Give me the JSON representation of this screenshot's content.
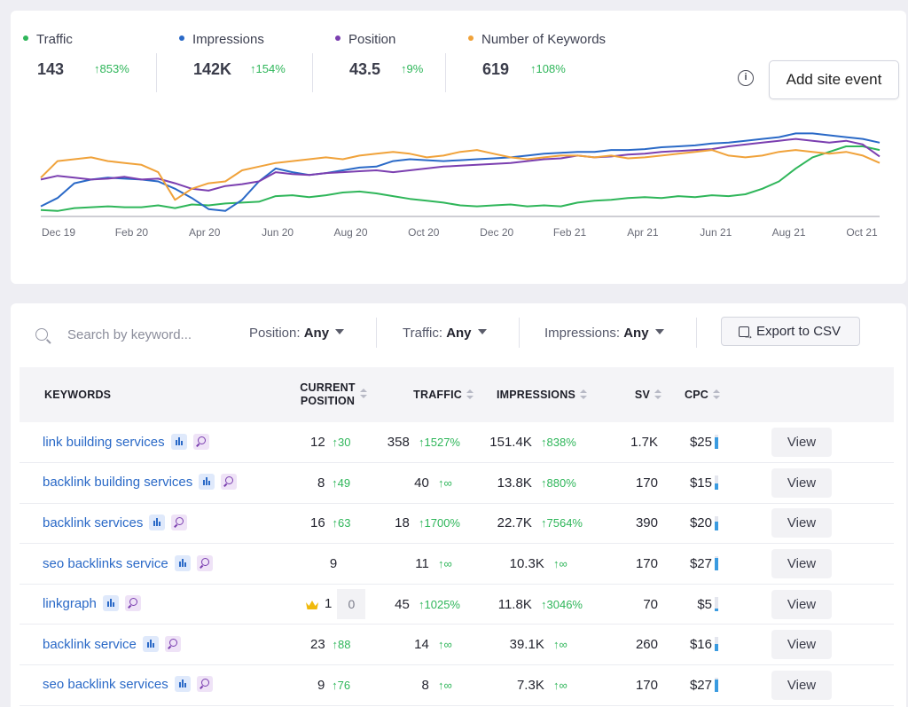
{
  "metrics": [
    {
      "label": "Traffic",
      "value": "143",
      "change": "853%",
      "color": "#2fb65a"
    },
    {
      "label": "Impressions",
      "value": "142K",
      "change": "154%",
      "color": "#2a69c7"
    },
    {
      "label": "Position",
      "value": "43.5",
      "change": "9%",
      "color": "#7b3fb0"
    },
    {
      "label": "Number of Keywords",
      "value": "619",
      "change": "108%",
      "color": "#f0a23a"
    }
  ],
  "info_icon": "info-icon",
  "add_site_event_label": "Add site event",
  "chart_data": {
    "type": "line",
    "x_tick_labels": [
      "Dec 19",
      "Feb 20",
      "Apr 20",
      "Jun 20",
      "Aug 20",
      "Oct 20",
      "Dec 20",
      "Feb 21",
      "Apr 21",
      "Jun 21",
      "Aug 21",
      "Oct 21"
    ],
    "series": [
      {
        "name": "Traffic",
        "color": "#2fb65a",
        "values": [
          7,
          6,
          9,
          10,
          11,
          10,
          10,
          12,
          9,
          13,
          12,
          14,
          15,
          16,
          22,
          23,
          21,
          23,
          26,
          27,
          25,
          22,
          19,
          17,
          15,
          12,
          11,
          12,
          13,
          11,
          12,
          11,
          15,
          17,
          18,
          20,
          21,
          20,
          22,
          21,
          23,
          22,
          24,
          30,
          38,
          52,
          64,
          70,
          76,
          76,
          72
        ]
      },
      {
        "name": "Impressions",
        "color": "#2a69c7",
        "values": [
          11,
          20,
          36,
          40,
          42,
          41,
          40,
          38,
          30,
          20,
          8,
          6,
          18,
          38,
          52,
          48,
          45,
          47,
          50,
          53,
          54,
          60,
          62,
          61,
          60,
          61,
          62,
          63,
          64,
          66,
          68,
          69,
          70,
          70,
          72,
          72,
          73,
          75,
          76,
          77,
          79,
          80,
          82,
          84,
          86,
          90,
          90,
          88,
          86,
          84,
          80
        ]
      },
      {
        "name": "Position",
        "color": "#7b3fb0",
        "values": [
          40,
          44,
          42,
          40,
          41,
          43,
          40,
          41,
          36,
          30,
          28,
          33,
          35,
          38,
          48,
          46,
          45,
          47,
          48,
          49,
          50,
          48,
          50,
          52,
          54,
          55,
          56,
          57,
          58,
          60,
          62,
          63,
          66,
          64,
          65,
          67,
          68,
          70,
          71,
          72,
          73,
          76,
          78,
          80,
          82,
          84,
          82,
          80,
          82,
          78,
          65
        ]
      },
      {
        "name": "Number of Keywords",
        "color": "#f0a23a",
        "values": [
          42,
          60,
          62,
          64,
          60,
          58,
          56,
          48,
          18,
          30,
          36,
          38,
          50,
          54,
          58,
          60,
          62,
          64,
          62,
          66,
          68,
          70,
          68,
          64,
          66,
          70,
          72,
          68,
          64,
          62,
          64,
          66,
          66,
          64,
          66,
          63,
          64,
          66,
          68,
          70,
          72,
          66,
          64,
          66,
          70,
          72,
          70,
          68,
          70,
          66,
          58
        ]
      }
    ]
  },
  "filters": {
    "search_placeholder": "Search by keyword...",
    "position_label": "Position:",
    "position_value": "Any",
    "traffic_label": "Traffic:",
    "traffic_value": "Any",
    "impressions_label": "Impressions:",
    "impressions_value": "Any",
    "export_label": "Export to CSV"
  },
  "table": {
    "headers": {
      "keywords": "KEYWORDS",
      "current_position_1": "CURRENT",
      "current_position_2": "POSITION",
      "traffic": "TRAFFIC",
      "impressions": "IMPRESSIONS",
      "sv": "SV",
      "cpc": "CPC"
    },
    "view_label": "View",
    "rows": [
      {
        "keyword": "link building services",
        "position": "12",
        "position_change": "30",
        "traffic": "358",
        "traffic_change": "1527%",
        "impressions": "151.4K",
        "impressions_change": "838%",
        "sv": "1.7K",
        "cpc": "$25",
        "cpc_level": 0.8
      },
      {
        "keyword": "backlink building services",
        "position": "8",
        "position_change": "49",
        "traffic": "40",
        "traffic_change": "∞",
        "impressions": "13.8K",
        "impressions_change": "880%",
        "sv": "170",
        "cpc": "$15",
        "cpc_level": 0.45
      },
      {
        "keyword": "backlink services",
        "position": "16",
        "position_change": "63",
        "traffic": "18",
        "traffic_change": "1700%",
        "impressions": "22.7K",
        "impressions_change": "7564%",
        "sv": "390",
        "cpc": "$20",
        "cpc_level": 0.65
      },
      {
        "keyword": "seo backlinks service",
        "position": "9",
        "position_change": "",
        "traffic": "11",
        "traffic_change": "∞",
        "impressions": "10.3K",
        "impressions_change": "∞",
        "sv": "170",
        "cpc": "$27",
        "cpc_level": 0.9
      },
      {
        "keyword": "linkgraph",
        "position": "1",
        "position_change": "",
        "position_badge": "0",
        "crown": true,
        "traffic": "45",
        "traffic_change": "1025%",
        "impressions": "11.8K",
        "impressions_change": "3046%",
        "sv": "70",
        "cpc": "$5",
        "cpc_level": 0.2
      },
      {
        "keyword": "backlink service",
        "position": "23",
        "position_change": "88",
        "traffic": "14",
        "traffic_change": "∞",
        "impressions": "39.1K",
        "impressions_change": "∞",
        "sv": "260",
        "cpc": "$16",
        "cpc_level": 0.5
      },
      {
        "keyword": "seo backlink services",
        "position": "9",
        "position_change": "76",
        "traffic": "8",
        "traffic_change": "∞",
        "impressions": "7.3K",
        "impressions_change": "∞",
        "sv": "170",
        "cpc": "$27",
        "cpc_level": 0.9
      }
    ]
  }
}
